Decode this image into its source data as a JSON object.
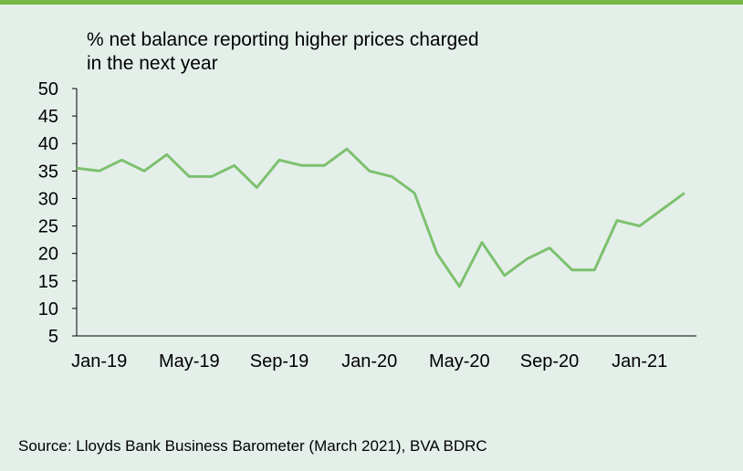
{
  "chart_data": {
    "type": "line",
    "title": "% net balance reporting higher prices charged in the next year",
    "categories": [
      null,
      "Jan-19",
      null,
      null,
      null,
      "May-19",
      null,
      null,
      null,
      "Sep-19",
      null,
      null,
      null,
      "Jan-20",
      null,
      null,
      null,
      "May-20",
      null,
      null,
      null,
      "Sep-20",
      null,
      null,
      null,
      "Jan-21",
      null,
      null
    ],
    "series": [
      {
        "name": "% net balance",
        "color": "#7dc16f",
        "values": [
          35.5,
          35,
          37,
          35,
          38,
          34,
          34,
          36,
          32,
          37,
          36,
          36,
          39,
          35,
          34,
          31,
          20,
          14,
          22,
          16,
          19,
          21,
          17,
          17,
          26,
          25,
          28,
          31
        ]
      }
    ],
    "ylim": [
      5,
      50
    ],
    "yticks": [
      5,
      10,
      15,
      20,
      25,
      30,
      35,
      40,
      45,
      50
    ],
    "source": "Source: Lloyds Bank Business Barometer (March 2021), BVA BDRC"
  }
}
